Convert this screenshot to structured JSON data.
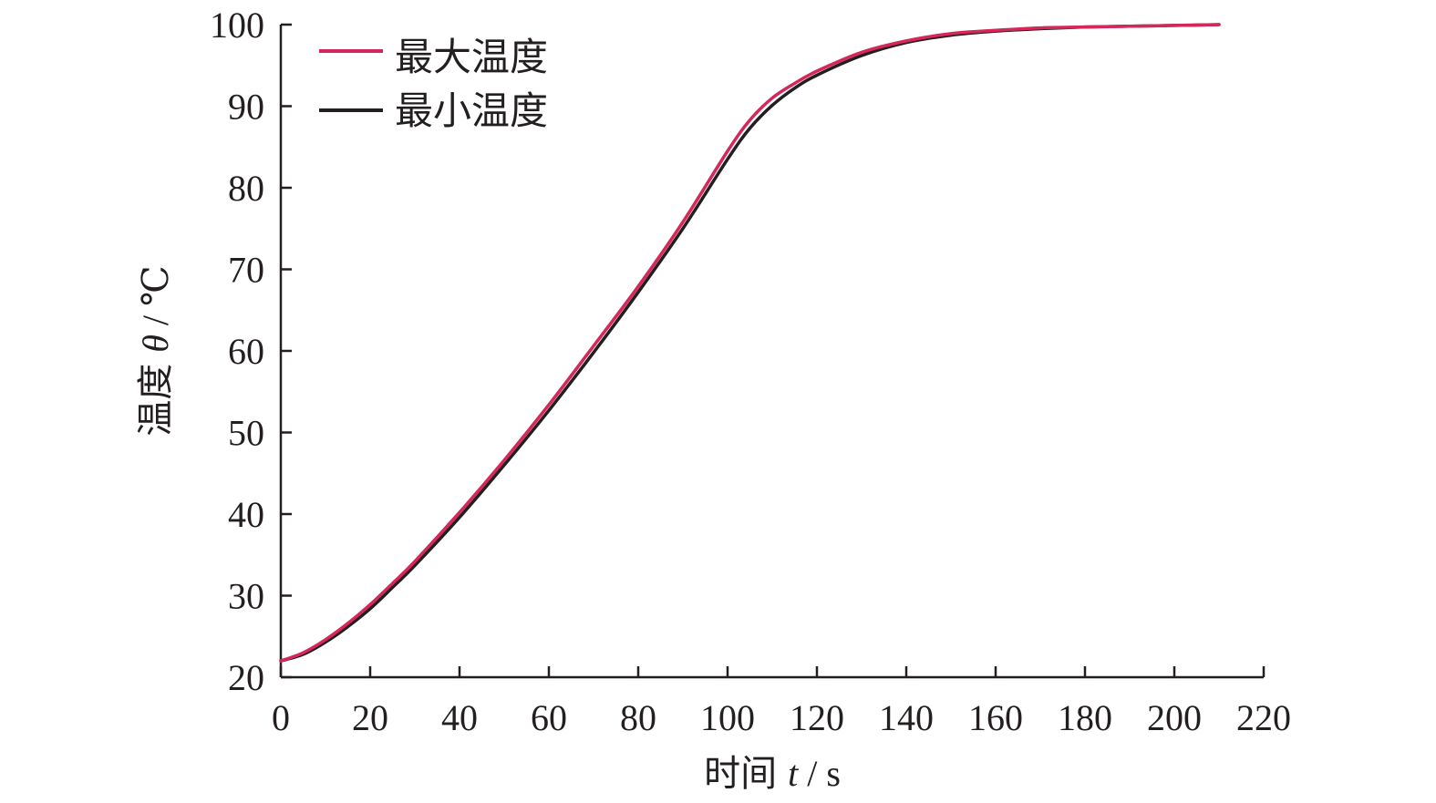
{
  "chart_data": {
    "type": "line",
    "title": "",
    "xlabel": {
      "prefix": "时间",
      "var": "t",
      "unit": "s"
    },
    "ylabel": {
      "prefix": "温度",
      "var": "θ",
      "unit": "℃"
    },
    "xlim": [
      0,
      220
    ],
    "ylim": [
      20,
      100
    ],
    "x_ticks": [
      0,
      20,
      40,
      60,
      80,
      100,
      120,
      140,
      160,
      180,
      200,
      220
    ],
    "y_ticks": [
      20,
      30,
      40,
      50,
      60,
      70,
      80,
      90,
      100
    ],
    "grid": false,
    "legend_position": "top-left",
    "series": [
      {
        "name": "最大温度",
        "color": "#d6275a",
        "x": [
          0,
          5,
          10,
          15,
          20,
          25,
          30,
          40,
          50,
          60,
          70,
          80,
          90,
          100,
          105,
          110,
          115,
          120,
          130,
          140,
          150,
          160,
          170,
          180,
          190,
          200,
          210
        ],
        "y": [
          22.0,
          23.0,
          24.6,
          26.6,
          28.9,
          31.5,
          34.2,
          40.2,
          46.6,
          53.4,
          60.6,
          67.9,
          75.8,
          84.5,
          88.3,
          91.0,
          92.8,
          94.3,
          96.6,
          98.0,
          98.9,
          99.3,
          99.6,
          99.7,
          99.8,
          99.9,
          100.0
        ]
      },
      {
        "name": "最小温度",
        "color": "#231f20",
        "x": [
          0,
          5,
          10,
          15,
          20,
          25,
          30,
          40,
          50,
          60,
          70,
          80,
          90,
          100,
          105,
          110,
          115,
          120,
          130,
          140,
          150,
          160,
          170,
          180,
          190,
          200,
          210
        ],
        "y": [
          22.0,
          22.8,
          24.3,
          26.2,
          28.4,
          31.0,
          33.7,
          39.6,
          46.0,
          52.7,
          59.8,
          67.2,
          75.0,
          83.5,
          87.3,
          90.1,
          92.2,
          93.8,
          96.2,
          97.8,
          98.7,
          99.2,
          99.5,
          99.7,
          99.8,
          99.9,
          100.0
        ]
      }
    ]
  }
}
